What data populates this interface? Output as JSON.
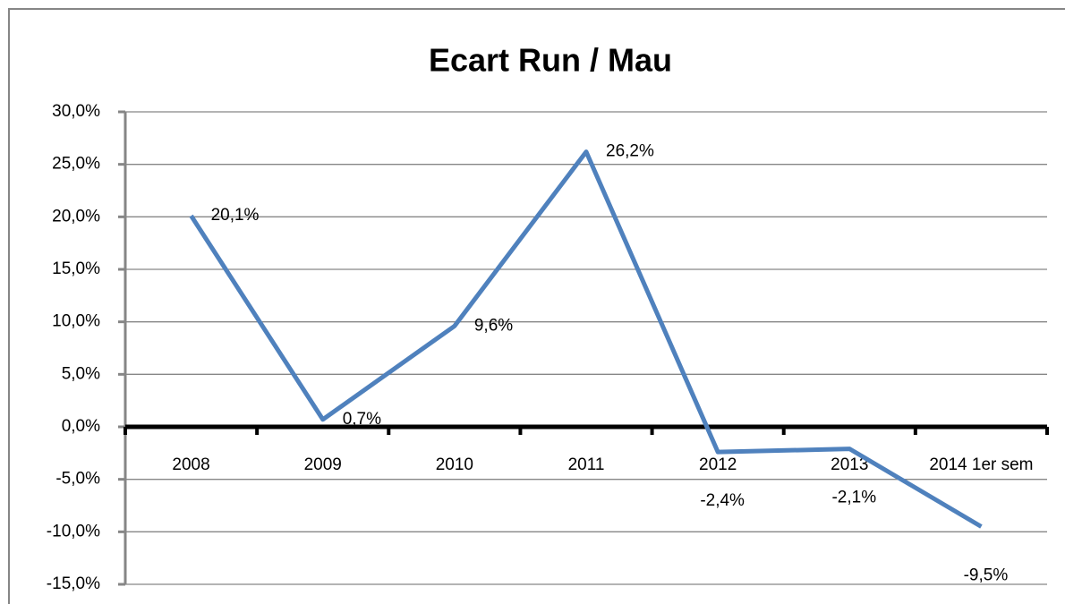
{
  "chart_data": {
    "type": "line",
    "title": "Ecart Run / Mau",
    "categories": [
      "2008",
      "2009",
      "2010",
      "2011",
      "2012",
      "2013",
      "2014 1er sem"
    ],
    "values": [
      20.1,
      0.7,
      9.6,
      26.2,
      -2.4,
      -2.1,
      -9.5
    ],
    "value_labels": [
      "20,1%",
      "0,7%",
      "9,6%",
      "26,2%",
      "-2,4%",
      "-2,1%",
      "-9,5%"
    ],
    "color": "#4f81bd",
    "ylim": [
      -15,
      30
    ],
    "yticks": [
      {
        "value": -15,
        "label": "-15,0%"
      },
      {
        "value": -10,
        "label": "-10,0%"
      },
      {
        "value": -5,
        "label": "-5,0%"
      },
      {
        "value": 0,
        "label": "0,0%"
      },
      {
        "value": 5,
        "label": "5,0%"
      },
      {
        "value": 10,
        "label": "10,0%"
      },
      {
        "value": 15,
        "label": "15,0%"
      },
      {
        "value": 20,
        "label": "20,0%"
      },
      {
        "value": 25,
        "label": "25,0%"
      },
      {
        "value": 30,
        "label": "30,0%"
      }
    ],
    "grid": true
  }
}
